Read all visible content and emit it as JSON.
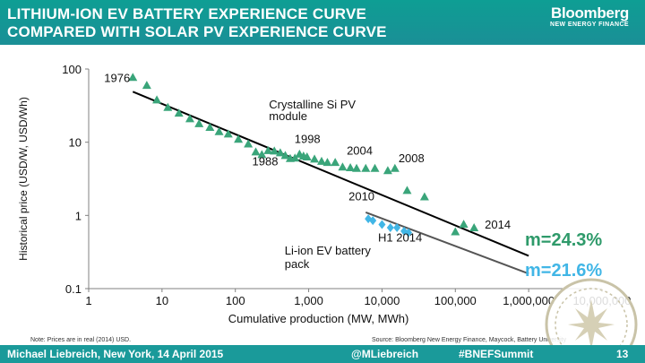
{
  "header": {
    "title_line1": "LITHIUM-ION EV BATTERY EXPERIENCE CURVE",
    "title_line2": "COMPARED WITH SOLAR PV EXPERIENCE CURVE",
    "brand_name": "Bloomberg",
    "brand_sub": "NEW ENERGY FINANCE"
  },
  "notes": {
    "left": "Note: Prices are in real (2014) USD.",
    "source": "Source: Bloomberg New Energy Finance, Maycock, Battery University"
  },
  "footer": {
    "presenter": "Michael Liebreich, New York, 14 April 2015",
    "handle": "@MLiebreich",
    "hashtag": "#BNEFSummit",
    "page": "13"
  },
  "colors": {
    "header_bg": "#129a96",
    "solar_points": "#3aa57a",
    "battery_points": "#41b6e6",
    "solar_fit": "#000000",
    "battery_fit": "#555555",
    "m_solar": "#2e9a6a",
    "m_battery": "#41b6e6"
  },
  "chart_data": {
    "type": "scatter",
    "xlabel": "Cumulative production (MW, MWh)",
    "ylabel": "Historical price (USD/W, USD/Wh)",
    "x_scale": "log",
    "y_scale": "log",
    "xlim": [
      1,
      10000000
    ],
    "ylim": [
      0.1,
      100
    ],
    "x_ticks": [
      1,
      10,
      100,
      1000,
      10000,
      100000,
      1000000,
      10000000
    ],
    "x_tick_labels": [
      "1",
      "10",
      "100",
      "1,000",
      "10,000",
      "100,000",
      "1,000,000",
      "10,000,000"
    ],
    "y_ticks": [
      0.1,
      1,
      10,
      100
    ],
    "y_tick_labels": [
      "0.1",
      "1",
      "10",
      "100"
    ],
    "grid": false,
    "series": [
      {
        "name": "Crystalline Si PV module",
        "marker": "triangle",
        "points": [
          [
            4,
            77
          ],
          [
            6.2,
            60
          ],
          [
            8.5,
            38
          ],
          [
            12,
            30
          ],
          [
            17,
            25
          ],
          [
            24,
            21
          ],
          [
            32,
            18
          ],
          [
            45,
            16
          ],
          [
            60,
            14
          ],
          [
            80,
            13
          ],
          [
            110,
            11
          ],
          [
            150,
            9.5
          ],
          [
            190,
            7.4
          ],
          [
            230,
            6.8
          ],
          [
            280,
            7.7
          ],
          [
            340,
            7.6
          ],
          [
            410,
            7.2
          ],
          [
            480,
            6.6
          ],
          [
            560,
            6.0
          ],
          [
            650,
            6.1
          ],
          [
            750,
            6.9
          ],
          [
            850,
            6.5
          ],
          [
            950,
            6.3
          ],
          [
            1200,
            5.9
          ],
          [
            1500,
            5.5
          ],
          [
            1800,
            5.3
          ],
          [
            2300,
            5.3
          ],
          [
            2900,
            4.6
          ],
          [
            3700,
            4.5
          ],
          [
            4500,
            4.4
          ],
          [
            6000,
            4.4
          ],
          [
            8000,
            4.4
          ],
          [
            12000,
            4.1
          ],
          [
            15000,
            4.4
          ],
          [
            22000,
            2.2
          ],
          [
            38000,
            1.8
          ],
          [
            100000,
            0.6
          ],
          [
            130000,
            0.76
          ],
          [
            180000,
            0.68
          ]
        ]
      },
      {
        "name": "Li-ion EV battery pack",
        "marker": "diamond",
        "points": [
          [
            6500,
            0.9
          ],
          [
            7500,
            0.85
          ],
          [
            10000,
            0.75
          ],
          [
            13000,
            0.68
          ],
          [
            16000,
            0.68
          ],
          [
            20000,
            0.61
          ],
          [
            23000,
            0.58
          ]
        ]
      }
    ],
    "fit_lines": [
      {
        "series": "Crystalline Si PV module",
        "from": [
          4,
          49
        ],
        "to": [
          1000000,
          0.28
        ]
      },
      {
        "series": "Li-ion EV battery pack",
        "from": [
          6000,
          1.1
        ],
        "to": [
          1000000,
          0.16
        ]
      }
    ],
    "annotations": [
      {
        "text": "1976",
        "x": 4,
        "y": 77
      },
      {
        "text": "Crystalline Si PV",
        "x": 1050,
        "y": 29
      },
      {
        "text": "module",
        "x": 1050,
        "y": 20
      },
      {
        "text": "1988",
        "x": 190,
        "y": 7.4
      },
      {
        "text": "1998",
        "x": 950,
        "y": 9.8
      },
      {
        "text": "2004",
        "x": 3700,
        "y": 6.8
      },
      {
        "text": "2008",
        "x": 15000,
        "y": 5.3
      },
      {
        "text": "2010",
        "x": 6500,
        "y": 1.6
      },
      {
        "text": "H1 2014",
        "x": 23000,
        "y": 0.44
      },
      {
        "text": "2014",
        "x": 180000,
        "y": 0.7
      },
      {
        "text": "Li-ion EV battery",
        "x": 5000,
        "y": 0.29
      },
      {
        "text": "pack",
        "x": 5000,
        "y": 0.19
      }
    ],
    "learning_rates": [
      {
        "series": "Crystalline Si PV module",
        "label": "m=24.3%"
      },
      {
        "series": "Li-ion EV battery pack",
        "label": "m=21.6%"
      }
    ]
  }
}
